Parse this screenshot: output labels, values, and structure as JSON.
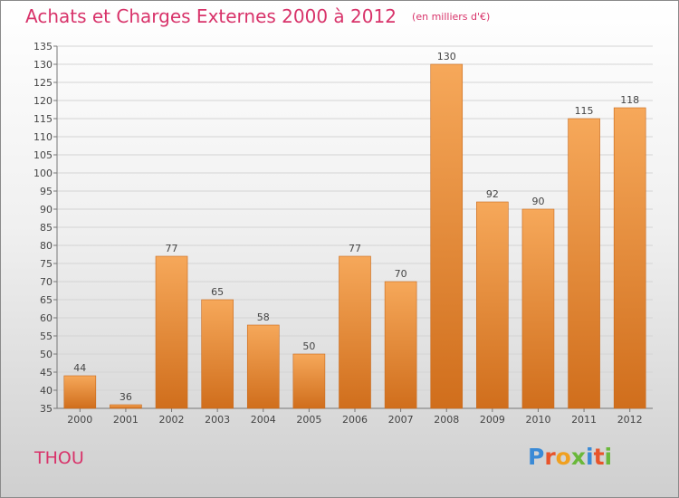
{
  "title": "Achats et Charges Externes 2000 à 2012",
  "unit": "(en milliers d'€)",
  "commune": "THOU",
  "logo": {
    "text": "Proxiti",
    "letters": [
      {
        "ch": "P",
        "color": "#3a8ad6"
      },
      {
        "ch": "r",
        "color": "#e8542a"
      },
      {
        "ch": "o",
        "color": "#f0a020"
      },
      {
        "ch": "x",
        "color": "#6ab83a"
      },
      {
        "ch": "i",
        "color": "#3a8ad6"
      },
      {
        "ch": "t",
        "color": "#e8542a"
      },
      {
        "ch": "i",
        "color": "#6ab83a"
      }
    ]
  },
  "colors": {
    "bar_light": "#f6a85a",
    "bar_dark": "#d06e1c",
    "bar_edge": "#c8691c",
    "text": "#444444",
    "accent": "#d8336a"
  },
  "chart_data": {
    "type": "bar",
    "categories": [
      "2000",
      "2001",
      "2002",
      "2003",
      "2004",
      "2005",
      "2006",
      "2007",
      "2008",
      "2009",
      "2010",
      "2011",
      "2012"
    ],
    "values": [
      44,
      36,
      77,
      65,
      58,
      50,
      77,
      70,
      130,
      92,
      90,
      115,
      118
    ],
    "data_labels": [
      "44",
      "36",
      "77",
      "65",
      "58",
      "50",
      "77",
      "70",
      "130",
      "92",
      "90",
      "115",
      "118"
    ],
    "ylim": [
      35,
      135
    ],
    "yticks": [
      35,
      40,
      45,
      50,
      55,
      60,
      65,
      70,
      75,
      80,
      85,
      90,
      95,
      100,
      105,
      110,
      115,
      120,
      125,
      130,
      135
    ],
    "grid": "horizontal",
    "legend": "none"
  }
}
